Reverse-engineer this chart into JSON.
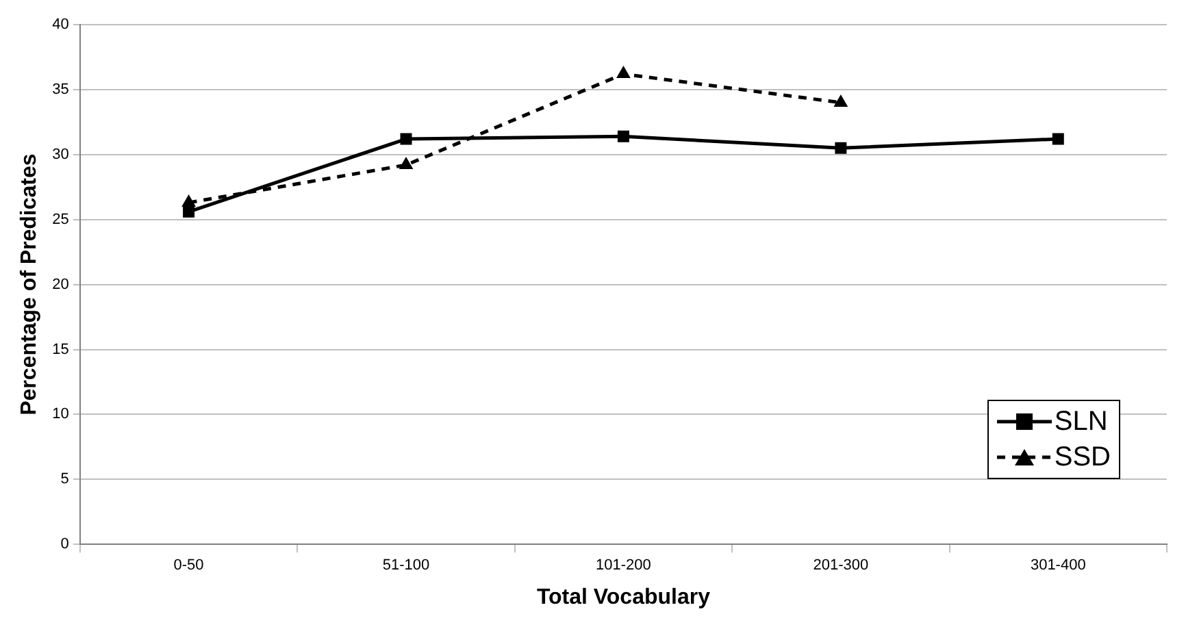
{
  "chart_data": {
    "type": "line",
    "xlabel": "Total Vocabulary",
    "ylabel": "Percentage of Predicates",
    "categories": [
      "0-50",
      "51-100",
      "101-200",
      "201-300",
      "301-400"
    ],
    "series": [
      {
        "name": "SLN",
        "color": "#000000",
        "values": [
          25.6,
          31.2,
          31.4,
          30.5,
          31.2
        ],
        "marker": "square",
        "line_style": "solid"
      },
      {
        "name": "SSD",
        "color": "#000000",
        "values": [
          26.3,
          29.2,
          36.2,
          34.0,
          null
        ],
        "marker": "triangle",
        "line_style": "dashed"
      }
    ],
    "ylim": [
      0,
      40
    ],
    "yticks": [
      0,
      5,
      10,
      15,
      20,
      25,
      30,
      35,
      40
    ],
    "grid": "y",
    "legend": "bottom right"
  }
}
